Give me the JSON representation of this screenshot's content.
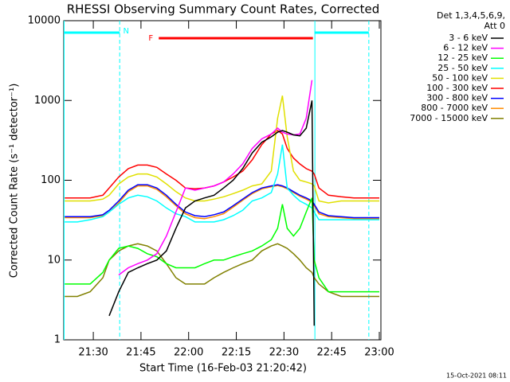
{
  "chart_data": {
    "type": "line",
    "title": "RHESSI Observing Summary Count Rates, Corrected",
    "legend_title": [
      "Det 1,3,4,5,6,9,",
      "Att 0"
    ],
    "x_label": "Start Time (16-Feb-03 21:20:42)",
    "y_label": "Corrected Count Rate (s⁻¹ detector⁻¹)",
    "timestamp": "15-Oct-2021 08:11",
    "log_y": true,
    "xlim": [
      20.7,
      120.5
    ],
    "ylim": [
      1,
      10000
    ],
    "xticks": [
      {
        "value": 30,
        "label": "21:30"
      },
      {
        "value": 45,
        "label": "21:45"
      },
      {
        "value": 60,
        "label": "22:00"
      },
      {
        "value": 75,
        "label": "22:15"
      },
      {
        "value": 90,
        "label": "22:30"
      },
      {
        "value": 105,
        "label": "22:45"
      },
      {
        "value": 120,
        "label": "23:00"
      }
    ],
    "yticks": [
      1,
      10,
      100,
      1000,
      10000
    ],
    "night": {
      "label": "N",
      "color": "#00ffff",
      "intervals": [
        [
          20.7,
          38.3
        ],
        [
          99.6,
          116.7
        ]
      ]
    },
    "flare": {
      "label": "F",
      "color": "#ff0000",
      "intervals": [
        [
          50.6,
          99.1
        ]
      ]
    },
    "x": [
      21,
      25,
      29,
      33,
      35,
      38,
      41,
      44,
      47,
      50,
      53,
      56,
      59,
      62,
      65,
      68,
      71,
      74,
      77,
      80,
      83,
      86,
      88,
      89.5,
      91,
      93,
      95,
      97,
      98.8,
      99.5,
      101,
      104,
      108,
      112,
      116,
      120
    ],
    "series": [
      {
        "name": "3 - 6 keV",
        "color": "#000000",
        "values": [
          null,
          null,
          null,
          null,
          2,
          4,
          7,
          8,
          9,
          10,
          13,
          25,
          45,
          55,
          60,
          65,
          80,
          100,
          140,
          220,
          300,
          350,
          400,
          420,
          400,
          370,
          360,
          450,
          1000,
          1.5,
          null,
          null,
          null,
          null,
          null,
          null
        ]
      },
      {
        "name": "6 - 12 keV",
        "color": "#ff00ff",
        "values": [
          null,
          null,
          null,
          null,
          null,
          6.5,
          8,
          9,
          10,
          12,
          20,
          40,
          80,
          75,
          80,
          85,
          95,
          120,
          160,
          250,
          330,
          380,
          450,
          400,
          380,
          370,
          380,
          600,
          1800,
          null,
          null,
          null,
          null,
          null,
          null,
          null
        ]
      },
      {
        "name": "12 - 25 keV",
        "color": "#00ff00",
        "values": [
          5,
          5,
          5,
          7,
          10,
          14,
          15,
          14,
          12,
          11,
          9,
          8,
          8,
          8,
          9,
          10,
          10,
          11,
          12,
          13,
          15,
          18,
          25,
          50,
          25,
          20,
          25,
          40,
          60,
          10,
          6,
          4,
          4,
          4,
          4,
          4
        ]
      },
      {
        "name": "25 - 50 keV",
        "color": "#00ffff",
        "values": [
          30,
          30,
          32,
          35,
          40,
          50,
          60,
          65,
          62,
          55,
          45,
          38,
          35,
          30,
          30,
          30,
          32,
          36,
          42,
          55,
          60,
          70,
          120,
          280,
          80,
          65,
          55,
          50,
          45,
          40,
          32,
          32,
          32,
          32,
          32,
          32
        ]
      },
      {
        "name": "50 - 100 keV",
        "color": "#e0e000",
        "values": [
          55,
          55,
          55,
          58,
          65,
          90,
          110,
          120,
          120,
          110,
          90,
          72,
          60,
          55,
          55,
          58,
          62,
          68,
          75,
          85,
          90,
          130,
          600,
          1150,
          350,
          130,
          100,
          95,
          90,
          85,
          55,
          52,
          55,
          55,
          55,
          55
        ]
      },
      {
        "name": "100 - 300 keV",
        "color": "#ff0000",
        "values": [
          60,
          60,
          60,
          65,
          80,
          110,
          140,
          155,
          155,
          145,
          120,
          100,
          80,
          78,
          80,
          85,
          95,
          110,
          130,
          180,
          280,
          380,
          420,
          380,
          250,
          190,
          160,
          140,
          130,
          120,
          80,
          65,
          62,
          60,
          60,
          60
        ]
      },
      {
        "name": "300 - 800 keV",
        "color": "#0000ff",
        "values": [
          35,
          35,
          35,
          37,
          42,
          55,
          75,
          88,
          88,
          80,
          65,
          50,
          40,
          36,
          35,
          37,
          40,
          48,
          58,
          70,
          80,
          85,
          88,
          85,
          80,
          72,
          65,
          60,
          55,
          50,
          40,
          36,
          35,
          34,
          34,
          34
        ]
      },
      {
        "name": "800 - 7000 keV",
        "color": "#ff8c00",
        "values": [
          34,
          34,
          34,
          36,
          40,
          52,
          72,
          85,
          85,
          77,
          62,
          48,
          38,
          34,
          33,
          35,
          38,
          46,
          56,
          68,
          78,
          83,
          86,
          83,
          78,
          70,
          63,
          58,
          53,
          48,
          38,
          35,
          34,
          33,
          33,
          33
        ]
      },
      {
        "name": "7000 - 15000 keV",
        "color": "#808000",
        "values": [
          3.5,
          3.5,
          4,
          6,
          10,
          13,
          15,
          16,
          15,
          13,
          9,
          6,
          5,
          5,
          5,
          6,
          7,
          8,
          9,
          10,
          13,
          15,
          16,
          15,
          14,
          12,
          10,
          8,
          7,
          6,
          5,
          4,
          3.5,
          3.5,
          3.5,
          3.5
        ]
      }
    ]
  }
}
